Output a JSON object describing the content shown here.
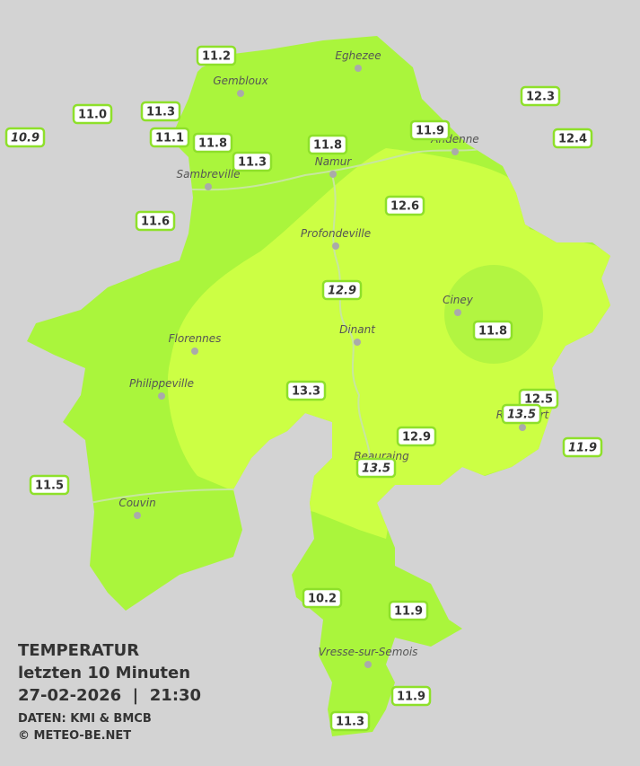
{
  "legend": {
    "title": "TEMPERATUR",
    "period": "letzten 10 Minuten",
    "datetime": "27-02-2026  |  21:30",
    "source": "DATEN: KMI & BMCB",
    "copyright": "© METEO-BE.NET"
  },
  "cities": [
    "Eghezee",
    "Gembloux",
    "Andenne",
    "Namur",
    "Sambreville",
    "Profondeville",
    "Ciney",
    "Dinant",
    "Florennes",
    "Philippeville",
    "Rochefort",
    "Beauraing",
    "Couvin",
    "Vresse-sur-Semois"
  ],
  "stations": [
    {
      "label": "11.2",
      "italic": false
    },
    {
      "label": "12.3",
      "italic": false
    },
    {
      "label": "11.0",
      "italic": false
    },
    {
      "label": "11.3",
      "italic": false
    },
    {
      "label": "10.9",
      "italic": true
    },
    {
      "label": "11.1",
      "italic": false
    },
    {
      "label": "11.8",
      "italic": false
    },
    {
      "label": "11.9",
      "italic": false
    },
    {
      "label": "12.4",
      "italic": false
    },
    {
      "label": "11.8",
      "italic": false
    },
    {
      "label": "11.3",
      "italic": false
    },
    {
      "label": "12.6",
      "italic": false
    },
    {
      "label": "11.6",
      "italic": false
    },
    {
      "label": "12.9",
      "italic": true
    },
    {
      "label": "11.8",
      "italic": false
    },
    {
      "label": "13.3",
      "italic": false
    },
    {
      "label": "12.5",
      "italic": false
    },
    {
      "label": "13.5",
      "italic": true
    },
    {
      "label": "12.9",
      "italic": false
    },
    {
      "label": "11.9",
      "italic": true
    },
    {
      "label": "13.5",
      "italic": true
    },
    {
      "label": "11.5",
      "italic": false
    },
    {
      "label": "10.2",
      "italic": false
    },
    {
      "label": "11.9",
      "italic": false
    },
    {
      "label": "11.9",
      "italic": false
    },
    {
      "label": "11.3",
      "italic": false
    }
  ]
}
